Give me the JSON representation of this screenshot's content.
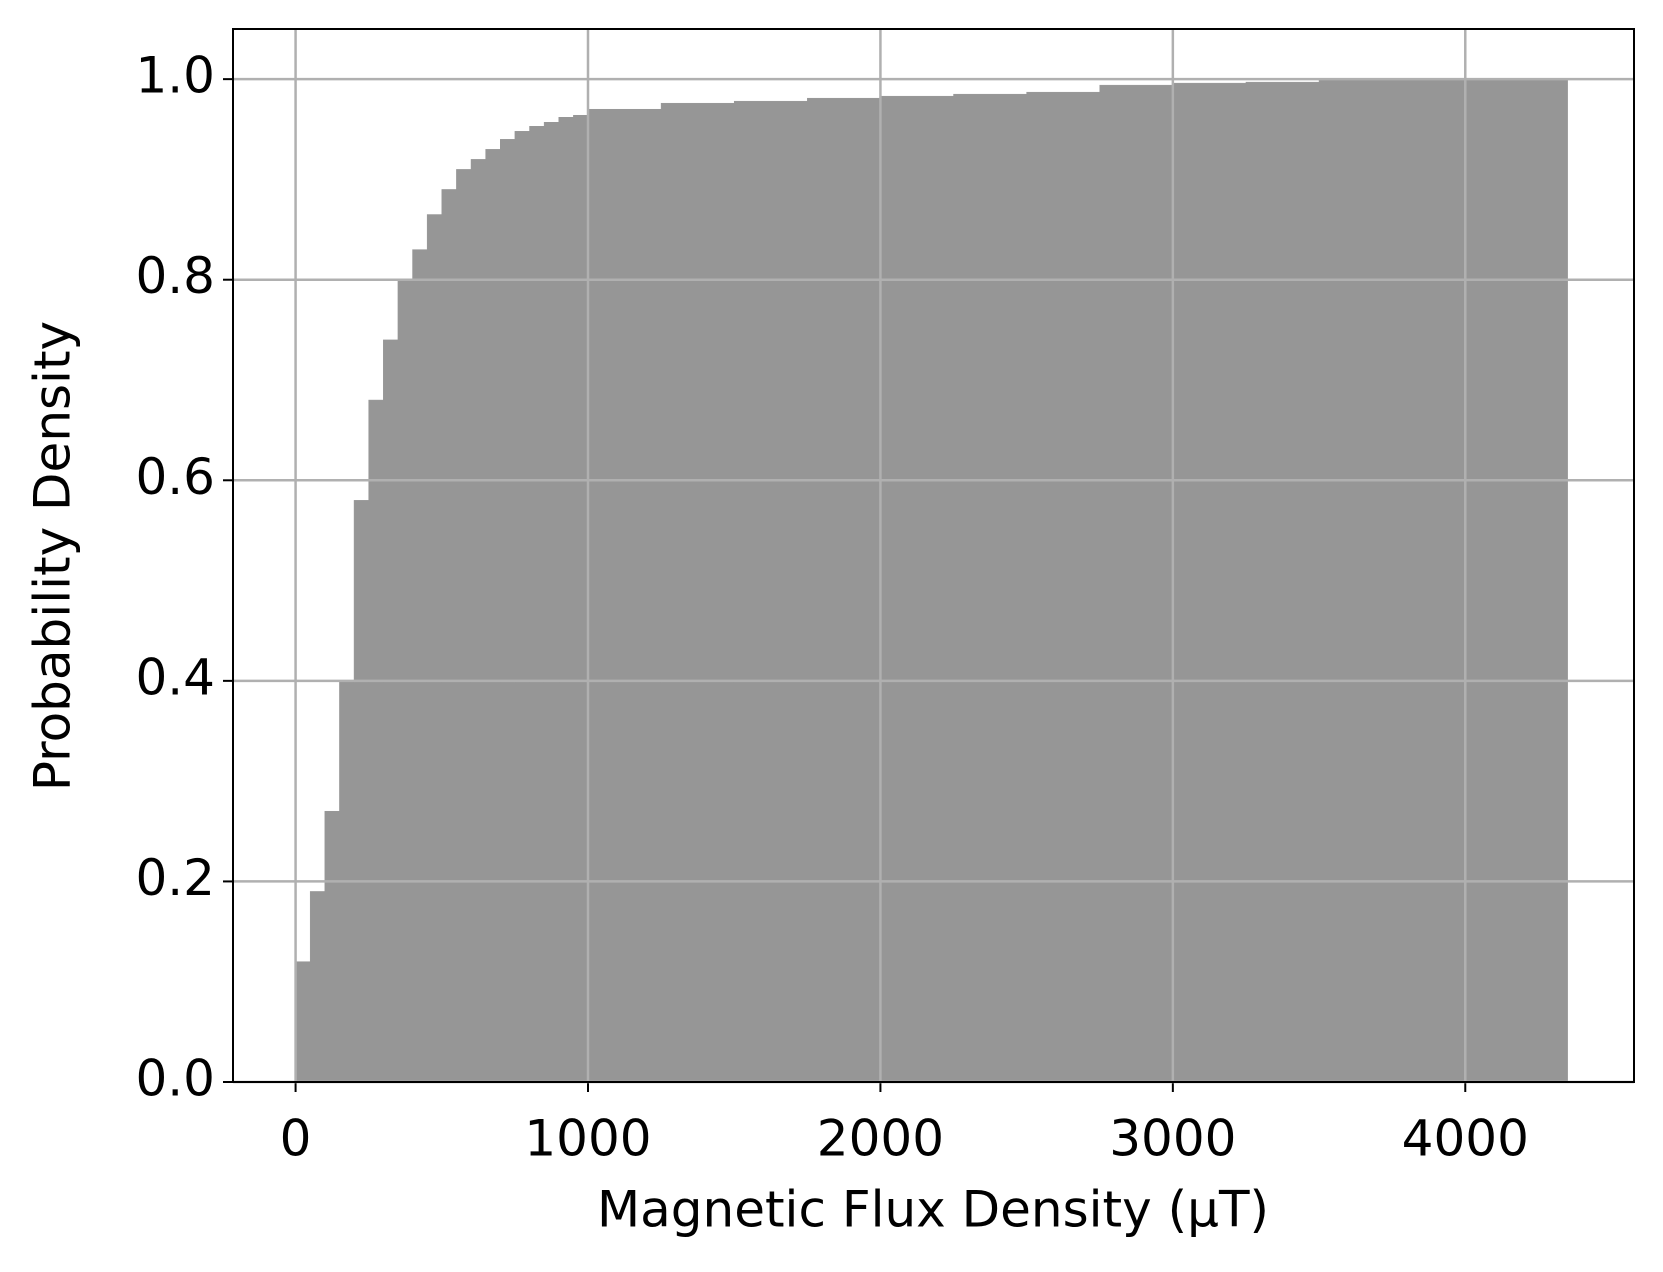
{
  "chart_data": {
    "type": "histogram",
    "xlabel": "Magnetic Flux Density (μT)",
    "ylabel": "Probability Density",
    "bins": [
      0,
      50,
      100,
      150,
      200,
      250,
      300,
      350,
      400,
      450,
      500,
      550,
      600,
      650,
      700,
      750,
      800,
      850,
      900,
      950,
      1000,
      1250,
      1500,
      1750,
      2000,
      2250,
      2500,
      2750,
      3000,
      3250,
      3500,
      3750,
      4000,
      4250,
      4350
    ],
    "values": [
      0.12,
      0.19,
      0.27,
      0.4,
      0.58,
      0.68,
      0.74,
      0.8,
      0.83,
      0.865,
      0.89,
      0.91,
      0.92,
      0.93,
      0.94,
      0.948,
      0.953,
      0.957,
      0.962,
      0.964,
      0.97,
      0.976,
      0.978,
      0.981,
      0.983,
      0.985,
      0.987,
      0.994,
      0.996,
      0.997,
      0.999,
      0.999,
      1.0,
      1.0
    ],
    "color": "#969696",
    "xlim": [
      -214,
      4577
    ],
    "ylim": [
      0,
      1.05
    ],
    "xticks": [
      0,
      1000,
      2000,
      3000,
      4000
    ],
    "yticks": [
      {
        "value": 0,
        "label": "0.0"
      },
      0.2,
      0.4,
      0.6,
      0.8,
      {
        "value": 1,
        "label": "1.0"
      }
    ],
    "grid": true
  }
}
